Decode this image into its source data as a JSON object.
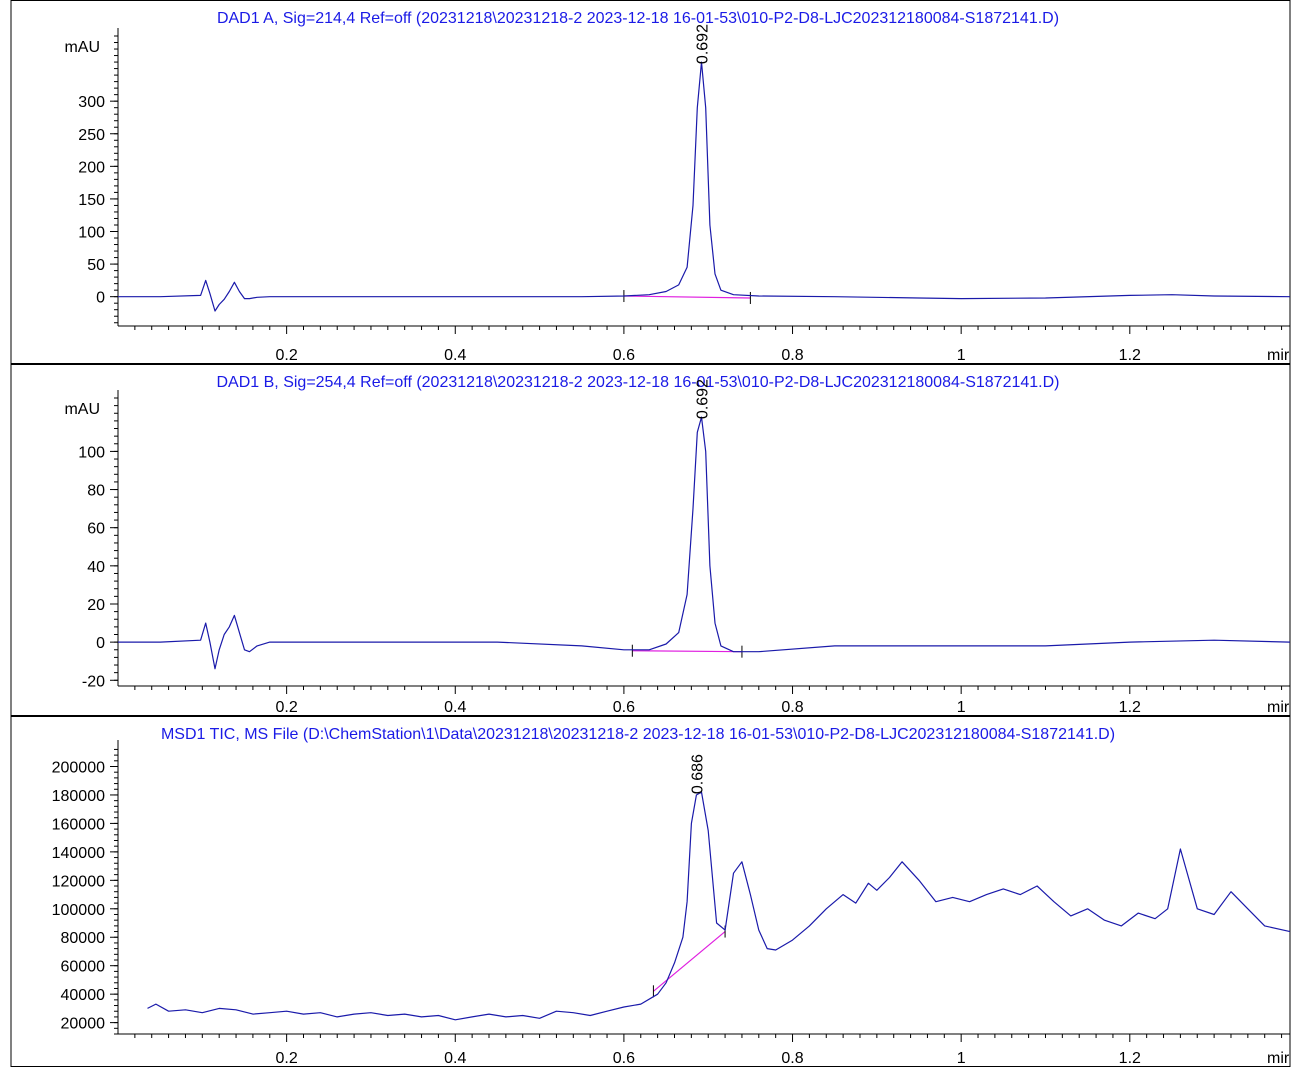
{
  "colors": {
    "frame": "#000000",
    "signal": "#1a1aaa",
    "baseline": "#e020e0",
    "title": "#1a1ae6",
    "background": "#ffffff"
  },
  "chart_data": [
    {
      "type": "line",
      "title": "DAD1 A, Sig=214,4 Ref=off (20231218\\20231218-2 2023-12-18 16-01-53\\010-P2-D8-LJC202312180084-S1872141.D)",
      "ylabel": "mAU",
      "xunit": "mir",
      "xlim": [
        0.0,
        1.39
      ],
      "ylim": [
        -45,
        400
      ],
      "xticks": [
        0.2,
        0.4,
        0.6,
        0.8,
        1,
        1.2
      ],
      "yticks": [
        0,
        50,
        100,
        150,
        200,
        250,
        300
      ],
      "grid": false,
      "series": [
        {
          "x": [
            0.0,
            0.05,
            0.098,
            0.104,
            0.109,
            0.115,
            0.12,
            0.126,
            0.132,
            0.138,
            0.144,
            0.15,
            0.156,
            0.165,
            0.18,
            0.25,
            0.4,
            0.55,
            0.6,
            0.63,
            0.65,
            0.665,
            0.675,
            0.682,
            0.687,
            0.692,
            0.697,
            0.702,
            0.708,
            0.715,
            0.73,
            0.76,
            0.85,
            0.95,
            1.0,
            1.1,
            1.2,
            1.25,
            1.3,
            1.39
          ],
          "y": [
            0,
            0,
            2,
            25,
            5,
            -22,
            -12,
            -4,
            8,
            22,
            8,
            -3,
            -3,
            -1,
            0,
            0,
            0,
            0,
            1,
            3,
            8,
            18,
            45,
            140,
            290,
            360,
            290,
            110,
            35,
            10,
            3,
            1,
            0,
            -2,
            -3,
            -2,
            2,
            3,
            1,
            0
          ]
        }
      ],
      "baseline_segment": {
        "x": [
          0.6,
          0.75
        ],
        "y": [
          1,
          -2
        ]
      },
      "baseline_ticks": [
        {
          "x": 0.6,
          "y": 1
        },
        {
          "x": 0.75,
          "y": -2
        }
      ],
      "peak_labels": [
        {
          "text": "0.692",
          "x": 0.692,
          "y": 360
        }
      ]
    },
    {
      "type": "line",
      "title": "DAD1 B, Sig=254,4 Ref=off (20231218\\20231218-2 2023-12-18 16-01-53\\010-P2-D8-LJC202312180084-S1872141.D)",
      "ylabel": "mAU",
      "xunit": "mir",
      "xlim": [
        0.0,
        1.39
      ],
      "ylim": [
        -23,
        128
      ],
      "xticks": [
        0.2,
        0.4,
        0.6,
        0.8,
        1,
        1.2
      ],
      "yticks": [
        -20,
        0,
        20,
        40,
        60,
        80,
        100
      ],
      "grid": false,
      "series": [
        {
          "x": [
            0.0,
            0.05,
            0.098,
            0.104,
            0.109,
            0.115,
            0.12,
            0.126,
            0.132,
            0.138,
            0.144,
            0.15,
            0.156,
            0.165,
            0.18,
            0.3,
            0.45,
            0.55,
            0.6,
            0.63,
            0.65,
            0.665,
            0.675,
            0.682,
            0.687,
            0.692,
            0.697,
            0.702,
            0.708,
            0.715,
            0.73,
            0.76,
            0.85,
            0.95,
            1.0,
            1.1,
            1.2,
            1.3,
            1.39
          ],
          "y": [
            0,
            0,
            1,
            10,
            0,
            -14,
            -4,
            4,
            8,
            14,
            5,
            -4,
            -5,
            -2,
            0,
            0,
            0,
            -2,
            -4,
            -4,
            -1,
            5,
            25,
            70,
            110,
            118,
            100,
            40,
            10,
            -2,
            -5,
            -5,
            -2,
            -2,
            -2,
            -2,
            0,
            1,
            0
          ]
        }
      ],
      "baseline_segment": {
        "x": [
          0.61,
          0.74
        ],
        "y": [
          -4.5,
          -5
        ]
      },
      "baseline_ticks": [
        {
          "x": 0.61,
          "y": -4.5
        },
        {
          "x": 0.74,
          "y": -5
        }
      ],
      "peak_labels": [
        {
          "text": "0.692",
          "x": 0.692,
          "y": 118
        }
      ]
    },
    {
      "type": "line",
      "title": "MSD1 TIC, MS File (D:\\ChemStation\\1\\Data\\20231218\\20231218-2 2023-12-18 16-01-53\\010-P2-D8-LJC202312180084-S1872141.D)",
      "ylabel": "",
      "xunit": "mir",
      "xlim": [
        0.0,
        1.39
      ],
      "ylim": [
        12000,
        213000
      ],
      "xticks": [
        0.2,
        0.4,
        0.6,
        0.8,
        1,
        1.2
      ],
      "yticks": [
        20000,
        40000,
        60000,
        80000,
        100000,
        120000,
        140000,
        160000,
        180000,
        200000
      ],
      "grid": false,
      "series": [
        {
          "x": [
            0.035,
            0.045,
            0.06,
            0.08,
            0.1,
            0.12,
            0.14,
            0.16,
            0.18,
            0.2,
            0.22,
            0.24,
            0.26,
            0.28,
            0.3,
            0.32,
            0.34,
            0.36,
            0.38,
            0.4,
            0.42,
            0.44,
            0.46,
            0.48,
            0.5,
            0.52,
            0.54,
            0.56,
            0.58,
            0.6,
            0.62,
            0.64,
            0.65,
            0.66,
            0.67,
            0.675,
            0.68,
            0.686,
            0.692,
            0.7,
            0.71,
            0.72,
            0.73,
            0.74,
            0.75,
            0.76,
            0.77,
            0.78,
            0.8,
            0.82,
            0.84,
            0.86,
            0.875,
            0.89,
            0.9,
            0.915,
            0.93,
            0.95,
            0.97,
            0.99,
            1.01,
            1.03,
            1.05,
            1.07,
            1.09,
            1.11,
            1.13,
            1.15,
            1.17,
            1.19,
            1.21,
            1.23,
            1.245,
            1.26,
            1.28,
            1.3,
            1.32,
            1.34,
            1.36,
            1.39
          ],
          "y": [
            30000,
            33000,
            28000,
            29000,
            27000,
            30000,
            29000,
            26000,
            27000,
            28000,
            26000,
            27000,
            24000,
            26000,
            27000,
            25000,
            26000,
            24000,
            25000,
            22000,
            24000,
            26000,
            24000,
            25000,
            23000,
            28000,
            27000,
            25000,
            28000,
            31000,
            33000,
            40000,
            48000,
            62000,
            80000,
            105000,
            160000,
            180000,
            182000,
            155000,
            90000,
            85000,
            125000,
            133000,
            110000,
            85000,
            72000,
            71000,
            78000,
            88000,
            100000,
            110000,
            104000,
            118000,
            113000,
            122000,
            133000,
            120000,
            105000,
            108000,
            105000,
            110000,
            114000,
            110000,
            116000,
            105000,
            95000,
            100000,
            92000,
            88000,
            97000,
            93000,
            100000,
            142000,
            100000,
            96000,
            112000,
            100000,
            88000,
            84000
          ]
        }
      ],
      "baseline_segment": {
        "x": [
          0.635,
          0.72
        ],
        "y": [
          42000,
          84000
        ]
      },
      "baseline_ticks": [
        {
          "x": 0.635,
          "y": 42000
        },
        {
          "x": 0.72,
          "y": 84000
        }
      ],
      "peak_labels": [
        {
          "text": "0.686",
          "x": 0.686,
          "y": 182000
        }
      ]
    }
  ]
}
